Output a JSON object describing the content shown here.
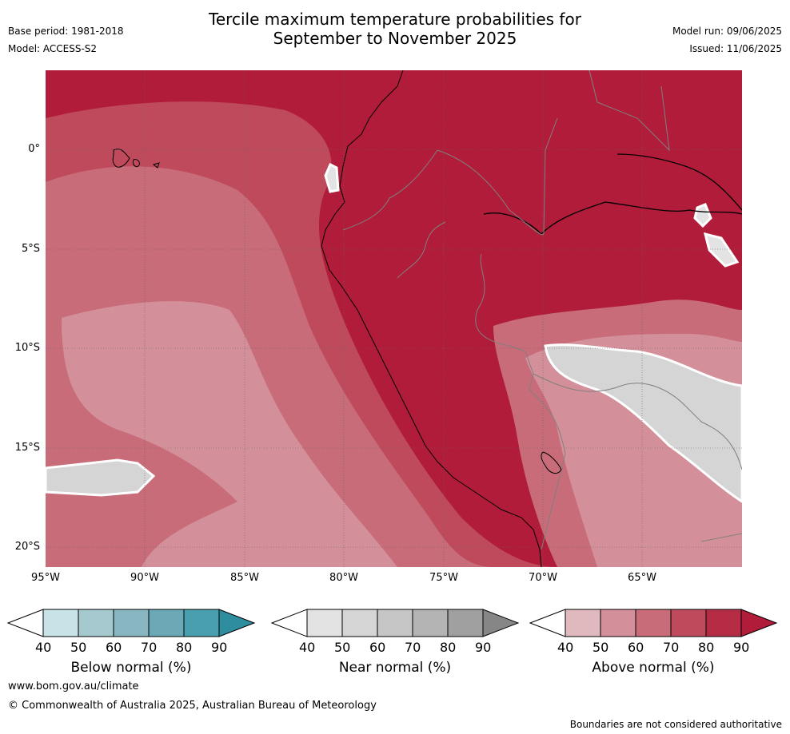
{
  "title_line1": "Tercile maximum temperature probabilities for",
  "title_line2": "September to November 2025",
  "base_period": "Base period: 1981-2018",
  "model": "Model: ACCESS-S2",
  "model_run": "Model run: 09/06/2025",
  "issued": "Issued: 11/06/2025",
  "map": {
    "lat_labels": [
      "0°",
      "5°S",
      "10°S",
      "15°S",
      "20°S"
    ],
    "lon_labels": [
      "95°W",
      "90°W",
      "85°W",
      "80°W",
      "75°W",
      "70°W",
      "65°W"
    ],
    "lat_values": [
      0,
      -5,
      -10,
      -15,
      -20
    ],
    "lon_values": [
      -95,
      -90,
      -85,
      -80,
      -75,
      -70,
      -65
    ],
    "lat_range": [
      -21,
      4
    ],
    "lon_range": [
      -95,
      -60
    ],
    "grid": true
  },
  "colorbars": [
    {
      "title": "Below normal (%)",
      "ticks": [
        "40",
        "50",
        "60",
        "70",
        "80",
        "90"
      ],
      "colors": [
        "#ffffff",
        "#c9e2e7",
        "#a6c9cf",
        "#88b7c1",
        "#6aa9b5",
        "#4a9fae",
        "#2e8d9f"
      ]
    },
    {
      "title": "Near normal (%)",
      "ticks": [
        "40",
        "50",
        "60",
        "70",
        "80",
        "90"
      ],
      "colors": [
        "#ffffff",
        "#e3e3e3",
        "#d5d5d5",
        "#c6c6c6",
        "#b4b4b4",
        "#a0a0a0",
        "#868686"
      ]
    },
    {
      "title": "Above normal (%)",
      "ticks": [
        "40",
        "50",
        "60",
        "70",
        "80",
        "90"
      ],
      "colors": [
        "#ffffff",
        "#e0b9be",
        "#d4909a",
        "#c86c79",
        "#be4a5c",
        "#b52c44",
        "#b01c39"
      ]
    }
  ],
  "footer": {
    "url": "www.bom.gov.au/climate",
    "copyright": "© Commonwealth of Australia 2025, Australian Bureau of Meteorology",
    "disclaimer": "Boundaries are not considered authoritative"
  }
}
